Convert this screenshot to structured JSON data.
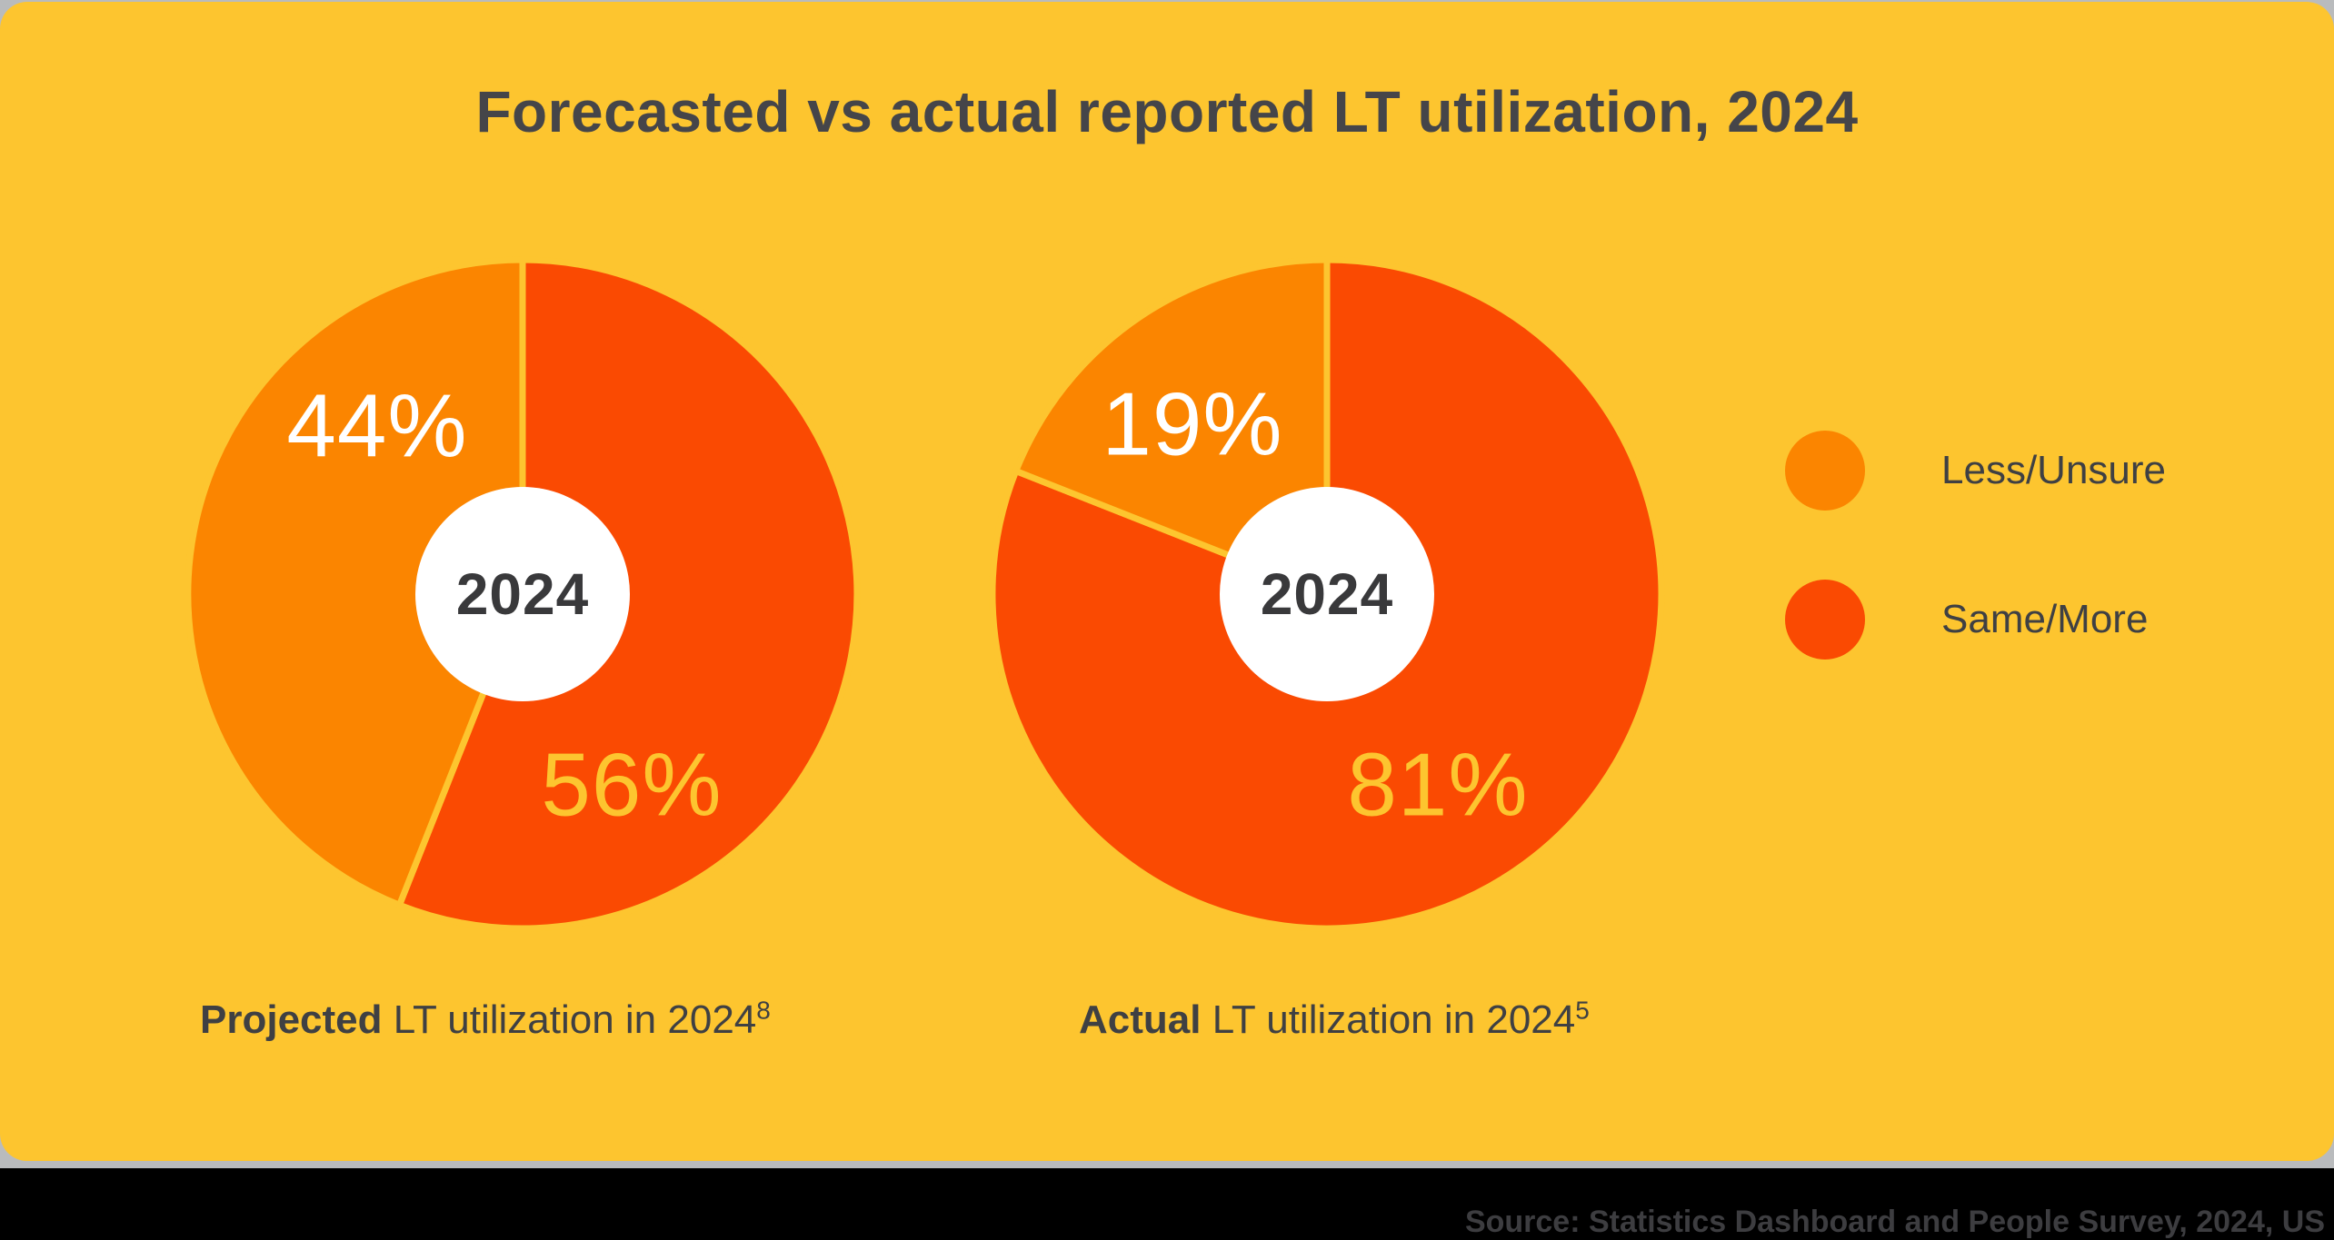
{
  "title": "Forecasted vs actual reported LT utilization, 2024",
  "colors": {
    "background": "#FDC52F",
    "less_unsure": "#FB8500",
    "same_more": "#FA4A02",
    "center_circle": "#FFFFFF",
    "dark_text": "#3F4043"
  },
  "legend": {
    "items": [
      {
        "label": "Less/Unsure",
        "color": "#FB8500"
      },
      {
        "label": "Same/More",
        "color": "#FA4A02"
      }
    ]
  },
  "chart_data": {
    "type": "pie",
    "title": "Forecasted vs actual reported LT utilization, 2024",
    "legend_position": "right",
    "pies": [
      {
        "caption_bold": "Projected",
        "caption_rest": " LT utilization in 2024",
        "caption_sup": "8",
        "center_label": "2024",
        "segments": [
          {
            "name": "Same/More",
            "value": 56,
            "label": "56%"
          },
          {
            "name": "Less/Unsure",
            "value": 44,
            "label": "44%"
          }
        ]
      },
      {
        "caption_bold": "Actual",
        "caption_rest": " LT utilization in 2024",
        "caption_sup": "5",
        "center_label": "2024",
        "segments": [
          {
            "name": "Same/More",
            "value": 81,
            "label": "81%"
          },
          {
            "name": "Less/Unsure",
            "value": 19,
            "label": "19%"
          }
        ]
      }
    ]
  },
  "source_text": "Source: Statistics Dashboard and People Survey, 2024, US"
}
